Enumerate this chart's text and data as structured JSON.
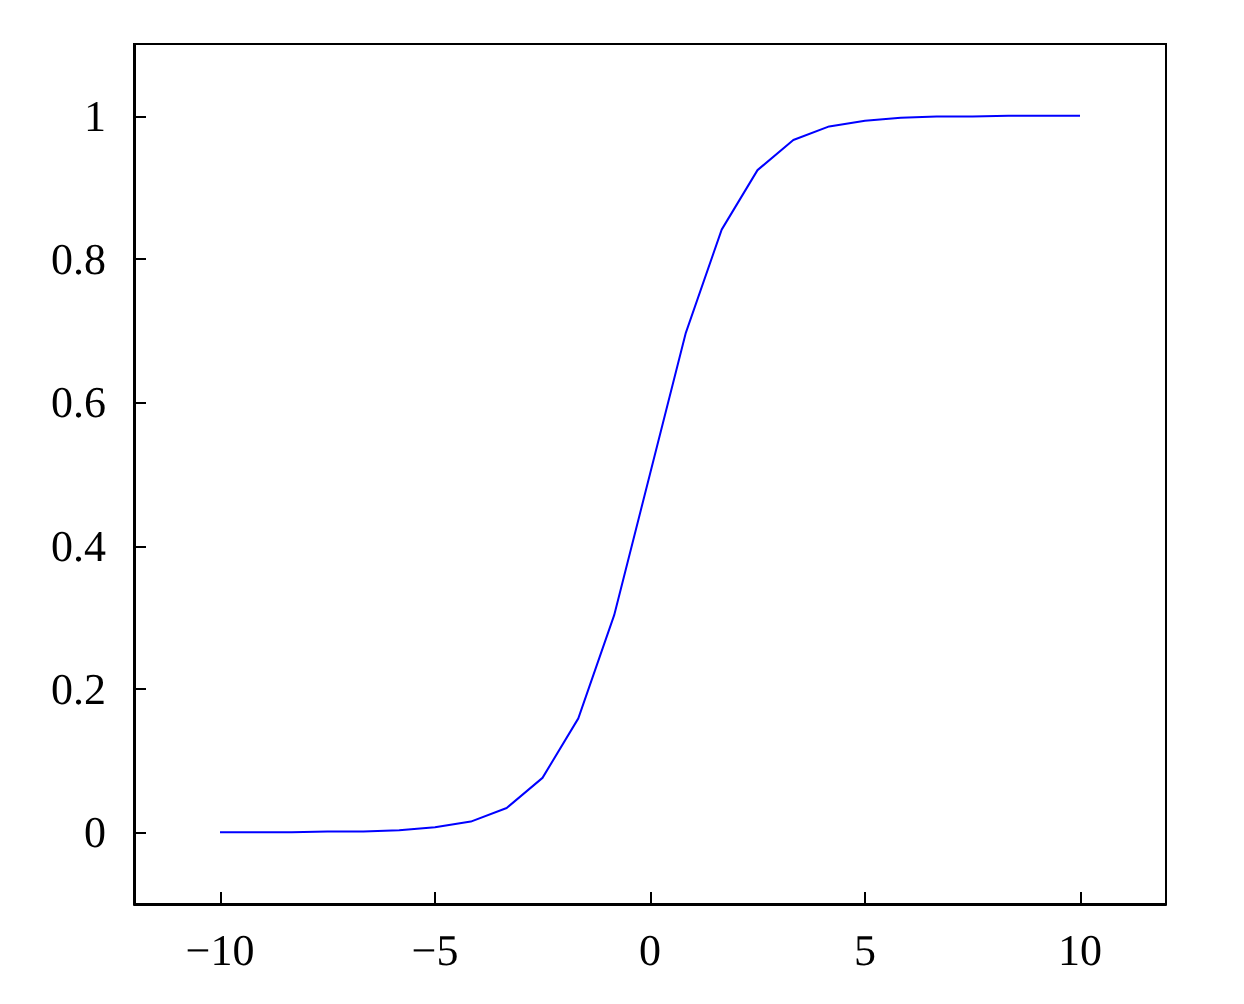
{
  "chart_data": {
    "type": "line",
    "x": [
      -10,
      -9.167,
      -8.333,
      -7.5,
      -6.667,
      -5.833,
      -5,
      -4.167,
      -3.333,
      -2.5,
      -1.667,
      -0.833,
      0,
      0.833,
      1.667,
      2.5,
      3.333,
      4.167,
      5,
      5.833,
      6.667,
      7.5,
      8.333,
      9.167,
      10
    ],
    "series": [
      {
        "color": "#0000ff",
        "values": [
          0,
          0,
          0,
          0.001,
          0.001,
          0.003,
          0.007,
          0.015,
          0.034,
          0.076,
          0.159,
          0.303,
          0.5,
          0.697,
          0.841,
          0.924,
          0.966,
          0.985,
          0.993,
          0.997,
          0.999,
          0.999,
          1,
          1,
          1
        ]
      }
    ],
    "xlim": [
      -12,
      12
    ],
    "ylim": [
      -0.1,
      1.1
    ],
    "xticks": [
      {
        "value": -10,
        "label": "−10"
      },
      {
        "value": -5,
        "label": "−5"
      },
      0,
      5,
      10
    ],
    "yticks": [
      0,
      0.2,
      0.4,
      0.6,
      0.8,
      1
    ],
    "marker": "none",
    "grid": false
  }
}
